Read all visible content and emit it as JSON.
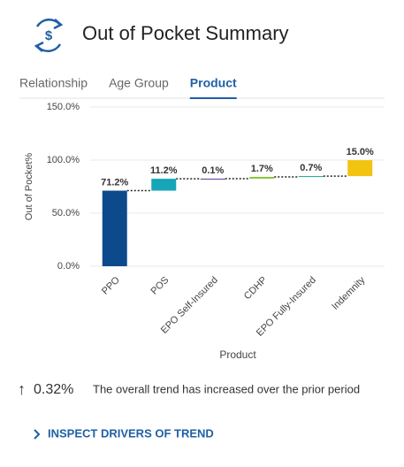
{
  "header": {
    "title": "Out of Pocket Summary"
  },
  "tabs": {
    "items": [
      "Relationship",
      "Age Group",
      "Product"
    ],
    "active_index": 2
  },
  "chart_data": {
    "type": "waterfall",
    "categories": [
      "PPO",
      "POS",
      "EPO Self-Insured",
      "CDHP",
      "EPO Fully-Insured",
      "Indemnity"
    ],
    "values": [
      71.2,
      11.2,
      0.1,
      1.7,
      0.7,
      15.0
    ],
    "value_labels": [
      "71.2%",
      "11.2%",
      "0.1%",
      "1.7%",
      "0.7%",
      "15.0%"
    ],
    "colors": [
      "#0d4a8c",
      "#17a5b8",
      "#5a3c8f",
      "#8cc63f",
      "#19a08c",
      "#f2c40f"
    ],
    "ylim": [
      0,
      150
    ],
    "yticks": [
      {
        "value": 0,
        "label": "0.0%"
      },
      {
        "value": 50,
        "label": "50.0%"
      },
      {
        "value": 100,
        "label": "100.0%"
      },
      {
        "value": 150,
        "label": "150.0%"
      }
    ],
    "y_label": "Out of Pocket%",
    "x_label": "Product",
    "grid": true
  },
  "trend": {
    "arrow": "↑",
    "value_label": "0.32%",
    "text": "The overall trend has increased over the prior period"
  },
  "link": {
    "label": "INSPECT DRIVERS OF TREND"
  }
}
